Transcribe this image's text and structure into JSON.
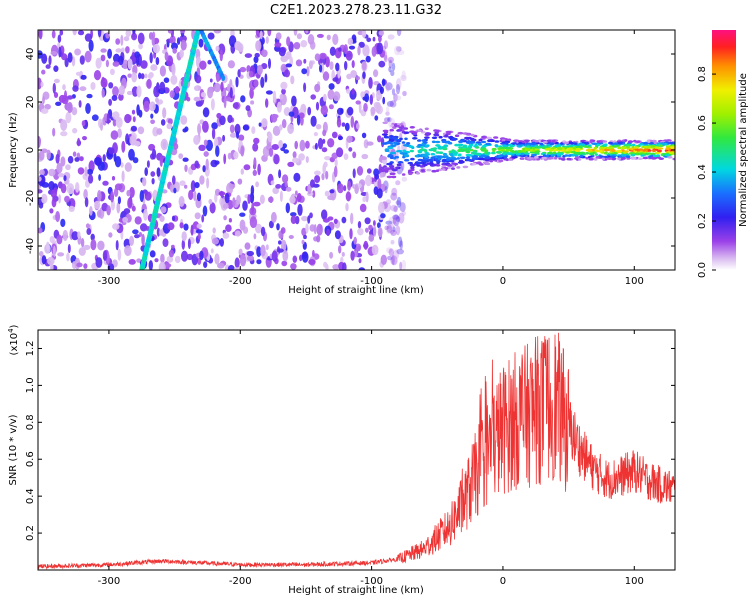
{
  "title": "C2E1.2023.278.23.11.G32",
  "chart_data": [
    {
      "type": "heatmap",
      "xlabel": "Height of straight line (km)",
      "ylabel": "Frequency (Hz)",
      "xlim": [
        -354,
        131
      ],
      "ylim": [
        -50,
        50
      ],
      "xticks": [
        -300,
        -200,
        -100,
        0,
        100
      ],
      "yticks": [
        -40,
        -20,
        0,
        20,
        40
      ],
      "colorbar": {
        "label": "Normalized spectral amplitude",
        "range": [
          0,
          0.98
        ],
        "ticks": [
          0.0,
          0.2,
          0.4,
          0.6,
          0.8
        ]
      },
      "features": {
        "diffuse_noise_x_range": [
          -354,
          -90
        ],
        "diagonal_trace": {
          "x": [
            -275,
            -232
          ],
          "y": [
            -50,
            50
          ]
        },
        "second_trace": {
          "x": [
            -230,
            -213
          ],
          "y": [
            50,
            30
          ]
        },
        "signal_band": {
          "x_range": [
            -90,
            131
          ],
          "y_center": 0,
          "width_hz_start": 12,
          "width_hz_end": 4
        }
      }
    },
    {
      "type": "line",
      "xlabel": "Height of straight line (km)",
      "ylabel": "SNR (10 * v/v)",
      "yscale_label": "(x10",
      "yscale_exp": "4",
      "yscale_close": ")",
      "xlim": [
        -354,
        131
      ],
      "ylim": [
        0,
        1.3
      ],
      "xticks": [
        -300,
        -200,
        -100,
        0,
        100
      ],
      "yticks": [
        0.2,
        0.4,
        0.6,
        0.8,
        1.0,
        1.2
      ],
      "color": "#ee3333",
      "series_envelope": {
        "x": [
          -354,
          -300,
          -260,
          -230,
          -200,
          -150,
          -100,
          -80,
          -60,
          -40,
          -30,
          -20,
          -10,
          0,
          10,
          20,
          30,
          40,
          50,
          60,
          70,
          80,
          90,
          100,
          110,
          120,
          131
        ],
        "y": [
          0.02,
          0.03,
          0.05,
          0.04,
          0.03,
          0.03,
          0.04,
          0.06,
          0.12,
          0.25,
          0.38,
          0.55,
          0.7,
          0.8,
          0.85,
          0.88,
          0.92,
          0.95,
          0.8,
          0.65,
          0.55,
          0.5,
          0.52,
          0.55,
          0.5,
          0.47,
          0.45
        ]
      }
    }
  ]
}
